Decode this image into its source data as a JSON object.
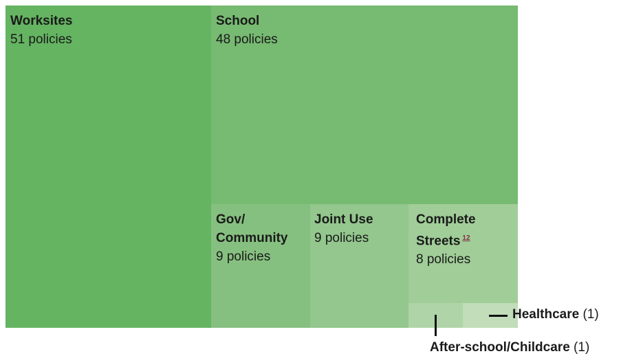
{
  "chart_data": {
    "type": "treemap",
    "unit_label": "policies",
    "items": [
      {
        "name": "Worksites",
        "value": 51,
        "color": "#64b461"
      },
      {
        "name": "School",
        "value": 48,
        "color": "#77ba72"
      },
      {
        "name": "Gov/ Community",
        "value": 9,
        "color": "#86c080"
      },
      {
        "name": "Joint Use",
        "value": 9,
        "color": "#93c78d"
      },
      {
        "name": "Complete Streets",
        "value": 8,
        "color": "#a0cd98",
        "footnote": "12"
      },
      {
        "name": "After-school/Childcare",
        "value": 1,
        "color": "#afd4a8"
      },
      {
        "name": "Healthcare",
        "value": 1,
        "color": "#c1ddb9"
      }
    ]
  },
  "labels": {
    "worksites": {
      "name": "Worksites",
      "count": "51 policies"
    },
    "school": {
      "name": "School",
      "count": "48 policies"
    },
    "gov_community": {
      "name": "Gov/ Community",
      "count": "9 policies"
    },
    "joint_use": {
      "name": "Joint Use",
      "count": "9 policies"
    },
    "complete_streets": {
      "name": "Complete Streets",
      "footnote": "12",
      "count": "8 policies"
    },
    "after_school": {
      "name": "After-school/Childcare",
      "count": "(1)"
    },
    "healthcare": {
      "name": "Healthcare",
      "count": "(1)"
    }
  }
}
